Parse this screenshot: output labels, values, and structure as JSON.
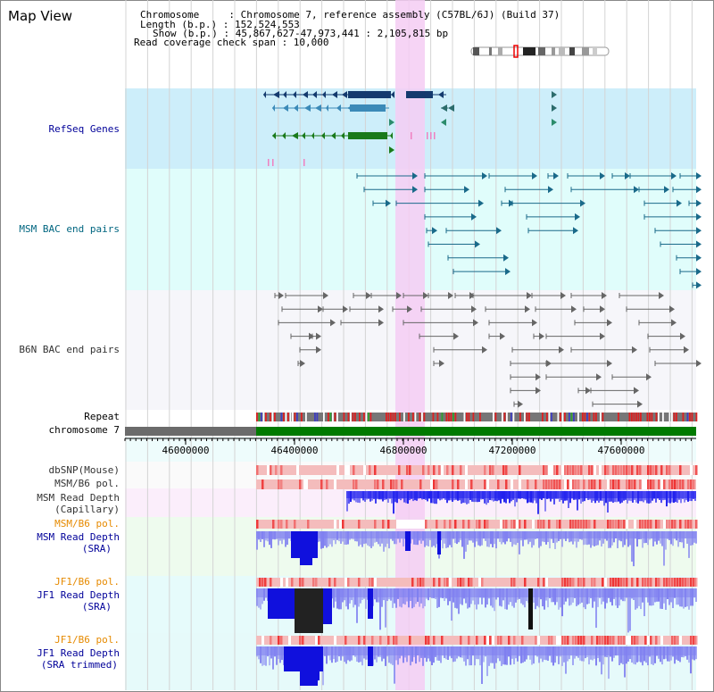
{
  "title": "Map View",
  "info": {
    "chromosome": "Chromosome     : Chromosome 7, reference assembly (C57BL/6J) (Build 37)",
    "length": "Length (b.p.) : 152,524,553",
    "show": "Show (b.p.) : 45,867,627-47,973,441 : 2,105,815 bp",
    "coverage": "Read coverage check span : 10,000"
  },
  "tracks": {
    "refseq": "RefSeq Genes",
    "msm_bac": "MSM BAC end pairs",
    "b6n_bac": "B6N BAC end pairs",
    "repeat": "Repeat",
    "chromosome": "chromosome 7",
    "dbsnp": "dbSNP(Mouse)",
    "msm_b6_pol_1": "MSM/B6 pol.",
    "msm_depth_cap_1": "MSM Read Depth",
    "msm_depth_cap_2": "(Capillary)",
    "msm_b6_pol_2": "MSM/B6 pol.",
    "msm_depth_sra_1": "MSM Read Depth",
    "msm_depth_sra_2": "(SRA)",
    "jf1_b6_pol_1": "JF1/B6 pol.",
    "jf1_depth_1": "JF1 Read Depth",
    "jf1_depth_2": "(SRA)",
    "jf1_b6_pol_2": "JF1/B6 pol.",
    "jf1_depth_trim_1": "JF1 Read Depth",
    "jf1_depth_trim_2": "(SRA trimmed)"
  },
  "axis": {
    "ticks": [
      "46000000",
      "46400000",
      "46800000",
      "47200000",
      "47600000"
    ]
  },
  "colors": {
    "refseq_bg": "#cdeefa",
    "msm_bg": "#e0fdfb",
    "b6n_bg": "#f6f6fa",
    "highlight": "#f5ccf3",
    "gene_dark": "#143a6e",
    "gene_mid": "#3b8ab8",
    "gene_green": "#1a7a1a",
    "depth_blue": "#2020ee",
    "depth_light": "#7f7ff0",
    "pol_red": "#ee3333",
    "pol_pink": "#f4bcbc",
    "label_blue": "#000099",
    "label_teal": "#006680",
    "label_orange": "#e68a00"
  }
}
